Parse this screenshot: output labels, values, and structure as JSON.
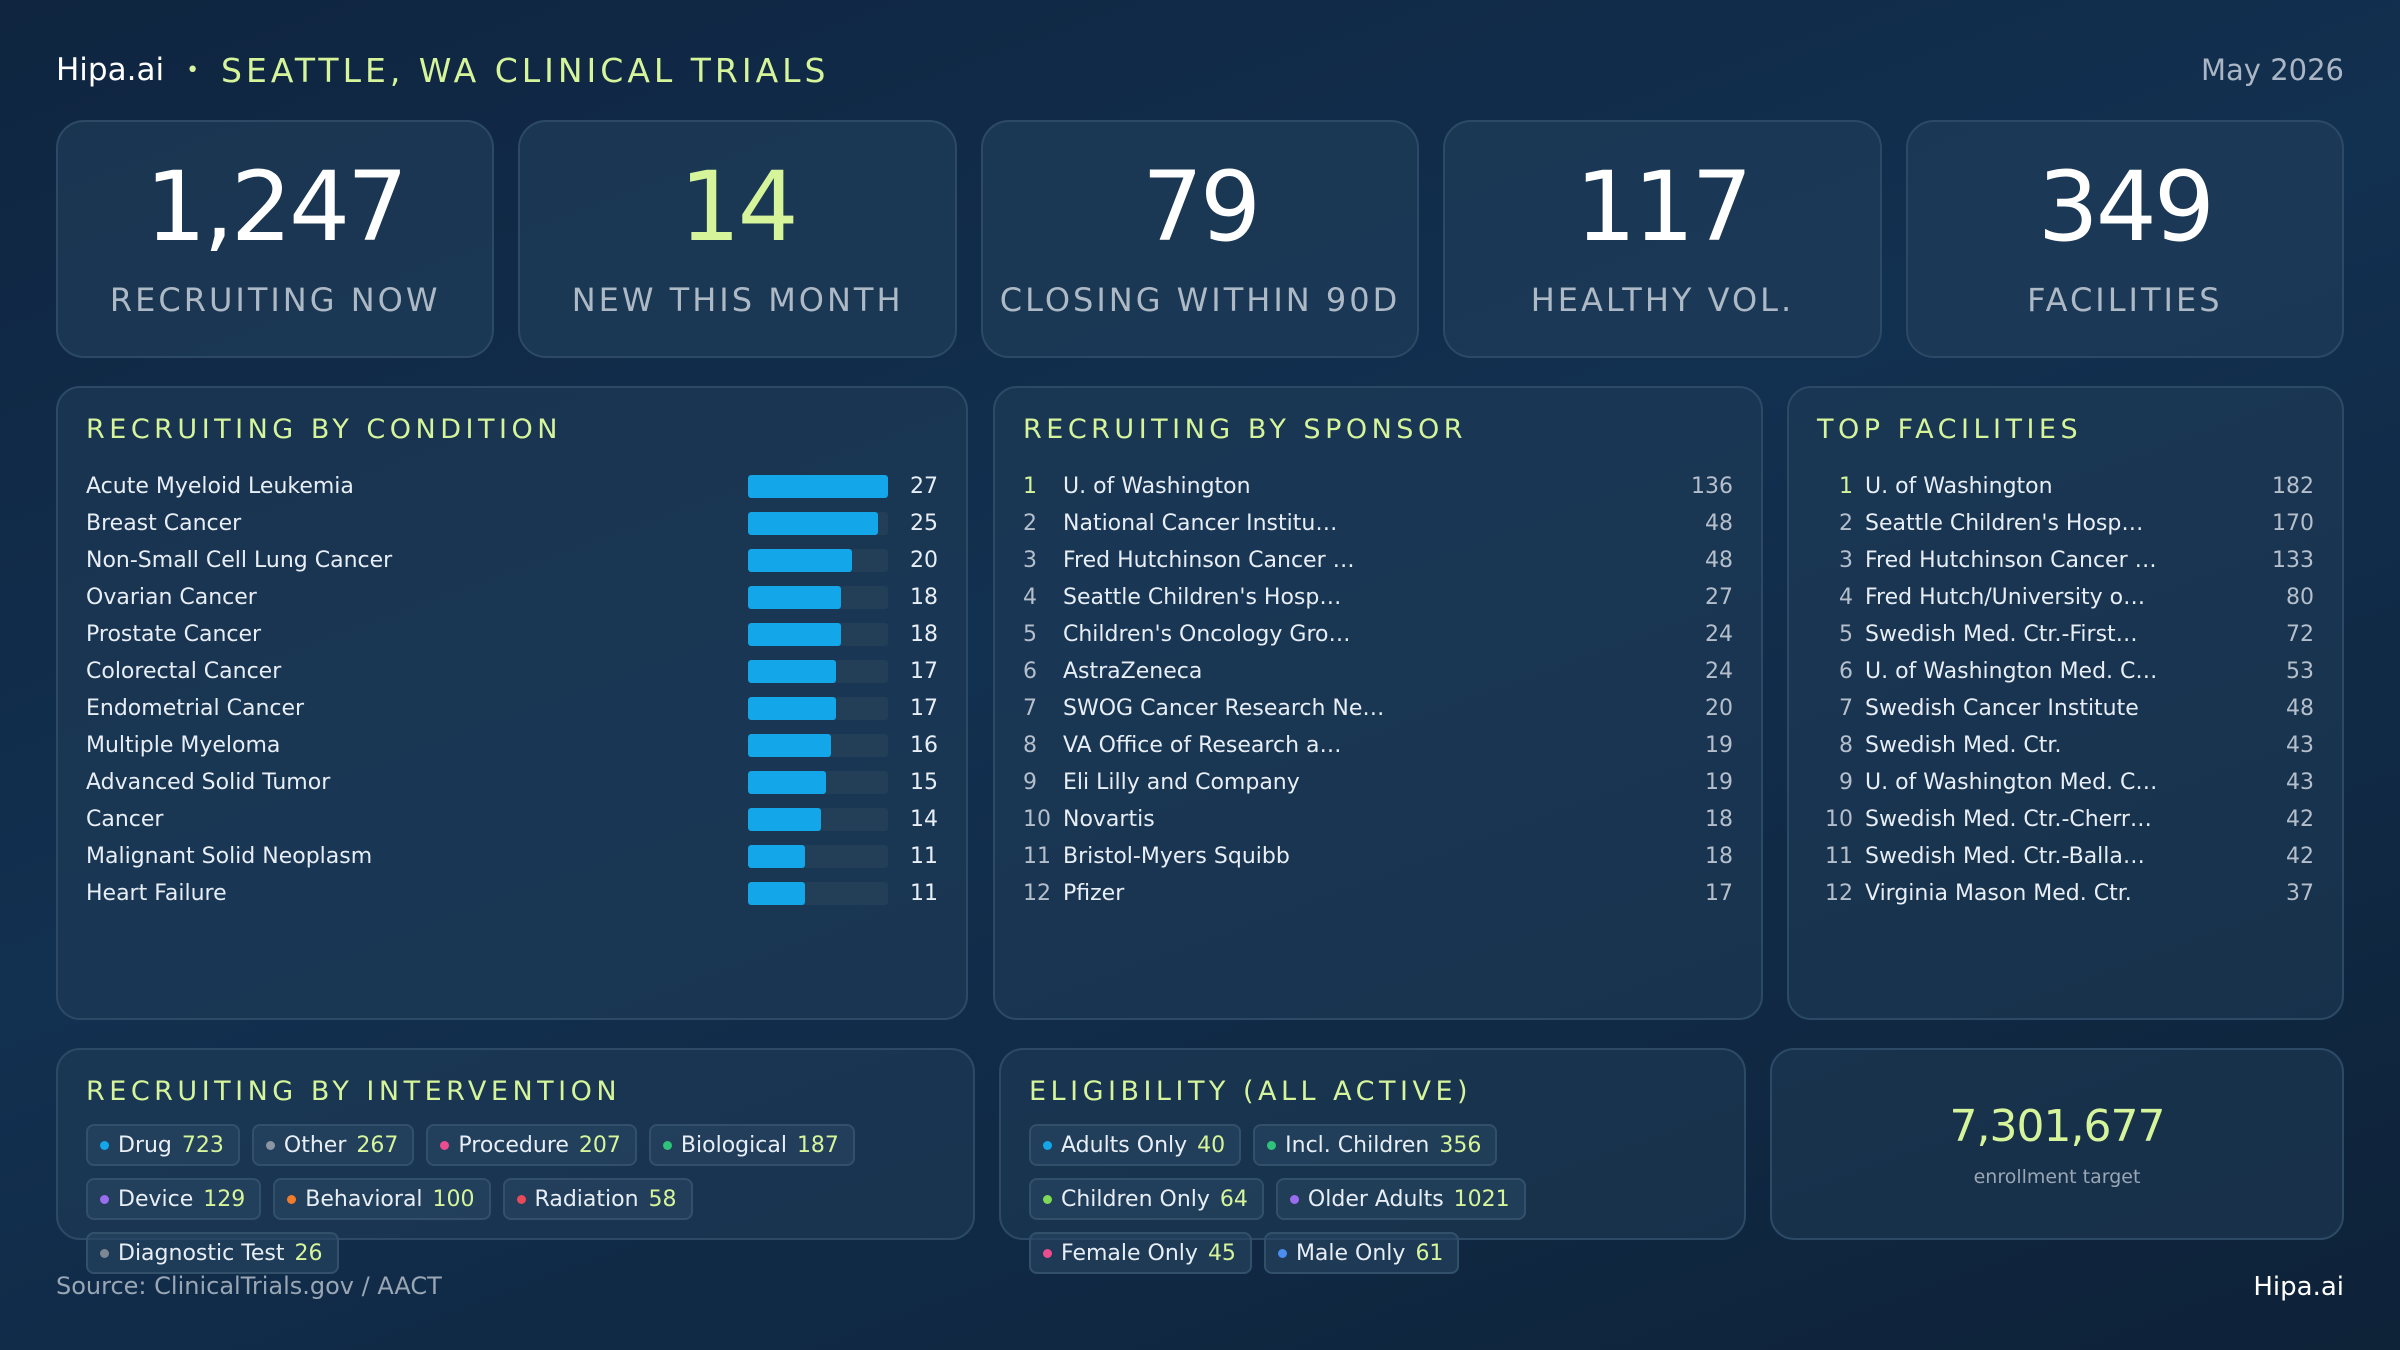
{
  "header": {
    "brand": "Hipa.ai",
    "separator": "•",
    "title": "SEATTLE, WA CLINICAL TRIALS",
    "date": "May 2026"
  },
  "kpis": [
    {
      "value": "1,247",
      "label": "RECRUITING NOW"
    },
    {
      "value": "14",
      "label": "NEW THIS MONTH"
    },
    {
      "value": "79",
      "label": "CLOSING WITHIN 90D"
    },
    {
      "value": "117",
      "label": "HEALTHY VOL."
    },
    {
      "value": "349",
      "label": "FACILITIES"
    }
  ],
  "conditions": {
    "title": "RECRUITING BY CONDITION",
    "max": 27,
    "items": [
      {
        "name": "Acute Myeloid Leukemia",
        "value": 27
      },
      {
        "name": "Breast Cancer",
        "value": 25
      },
      {
        "name": "Non-Small Cell Lung Cancer",
        "value": 20
      },
      {
        "name": "Ovarian Cancer",
        "value": 18
      },
      {
        "name": "Prostate Cancer",
        "value": 18
      },
      {
        "name": "Colorectal Cancer",
        "value": 17
      },
      {
        "name": "Endometrial Cancer",
        "value": 17
      },
      {
        "name": "Multiple Myeloma",
        "value": 16
      },
      {
        "name": "Advanced Solid Tumor",
        "value": 15
      },
      {
        "name": "Cancer",
        "value": 14
      },
      {
        "name": "Malignant Solid Neoplasm",
        "value": 11
      },
      {
        "name": "Heart Failure",
        "value": 11
      }
    ]
  },
  "sponsors": {
    "title": "RECRUITING BY SPONSOR",
    "items": [
      {
        "rank": "1",
        "name": "U. of Washington",
        "value": "136"
      },
      {
        "rank": "2",
        "name": "National Cancer Institu…",
        "value": "48"
      },
      {
        "rank": "3",
        "name": "Fred Hutchinson Cancer …",
        "value": "48"
      },
      {
        "rank": "4",
        "name": "Seattle Children's Hosp…",
        "value": "27"
      },
      {
        "rank": "5",
        "name": "Children's Oncology Gro…",
        "value": "24"
      },
      {
        "rank": "6",
        "name": "AstraZeneca",
        "value": "24"
      },
      {
        "rank": "7",
        "name": "SWOG Cancer Research Ne…",
        "value": "20"
      },
      {
        "rank": "8",
        "name": "VA Office of Research a…",
        "value": "19"
      },
      {
        "rank": "9",
        "name": "Eli Lilly and Company",
        "value": "19"
      },
      {
        "rank": "10",
        "name": "Novartis",
        "value": "18"
      },
      {
        "rank": "11",
        "name": "Bristol-Myers Squibb",
        "value": "18"
      },
      {
        "rank": "12",
        "name": "Pfizer",
        "value": "17"
      }
    ]
  },
  "facilities": {
    "title": "TOP FACILITIES",
    "items": [
      {
        "rank": "1",
        "name": "U. of Washington",
        "value": "182"
      },
      {
        "rank": "2",
        "name": "Seattle Children's Hosp…",
        "value": "170"
      },
      {
        "rank": "3",
        "name": "Fred Hutchinson Cancer …",
        "value": "133"
      },
      {
        "rank": "4",
        "name": "Fred Hutch/University o…",
        "value": "80"
      },
      {
        "rank": "5",
        "name": "Swedish Med. Ctr.-First…",
        "value": "72"
      },
      {
        "rank": "6",
        "name": "U. of Washington Med. C…",
        "value": "53"
      },
      {
        "rank": "7",
        "name": "Swedish Cancer Institute",
        "value": "48"
      },
      {
        "rank": "8",
        "name": "Swedish Med. Ctr.",
        "value": "43"
      },
      {
        "rank": "9",
        "name": "U. of Washington Med. C…",
        "value": "43"
      },
      {
        "rank": "10",
        "name": "Swedish Med. Ctr.-Cherr…",
        "value": "42"
      },
      {
        "rank": "11",
        "name": "Swedish Med. Ctr.-Balla…",
        "value": "42"
      },
      {
        "rank": "12",
        "name": "Virginia Mason Med. Ctr.",
        "value": "37"
      }
    ]
  },
  "interventions": {
    "title": "RECRUITING BY INTERVENTION",
    "items": [
      {
        "label": "Drug",
        "count": "723",
        "color": "#13a6e9"
      },
      {
        "label": "Other",
        "count": "267",
        "color": "#8a96a3"
      },
      {
        "label": "Procedure",
        "count": "207",
        "color": "#ec4d8f"
      },
      {
        "label": "Biological",
        "count": "187",
        "color": "#2fc27a"
      },
      {
        "label": "Device",
        "count": "129",
        "color": "#9a6cf0"
      },
      {
        "label": "Behavioral",
        "count": "100",
        "color": "#f07c2a"
      },
      {
        "label": "Radiation",
        "count": "58",
        "color": "#e84a5a"
      },
      {
        "label": "Diagnostic Test",
        "count": "26",
        "color": "#7d8894"
      }
    ]
  },
  "eligibility": {
    "title": "ELIGIBILITY (ALL ACTIVE)",
    "items": [
      {
        "label": "Adults Only",
        "count": "40",
        "color": "#13a6e9"
      },
      {
        "label": "Incl. Children",
        "count": "356",
        "color": "#2fc27a"
      },
      {
        "label": "Children Only",
        "count": "64",
        "color": "#7ed957"
      },
      {
        "label": "Older Adults",
        "count": "1021",
        "color": "#9a6cf0"
      },
      {
        "label": "Female Only",
        "count": "45",
        "color": "#ec4d8f"
      },
      {
        "label": "Male Only",
        "count": "61",
        "color": "#4a8ef0"
      }
    ]
  },
  "target": {
    "value": "7,301,677",
    "label": "enrollment target"
  },
  "footer": {
    "source": "Source: ClinicalTrials.gov / AACT",
    "brand": "Hipa.ai"
  }
}
